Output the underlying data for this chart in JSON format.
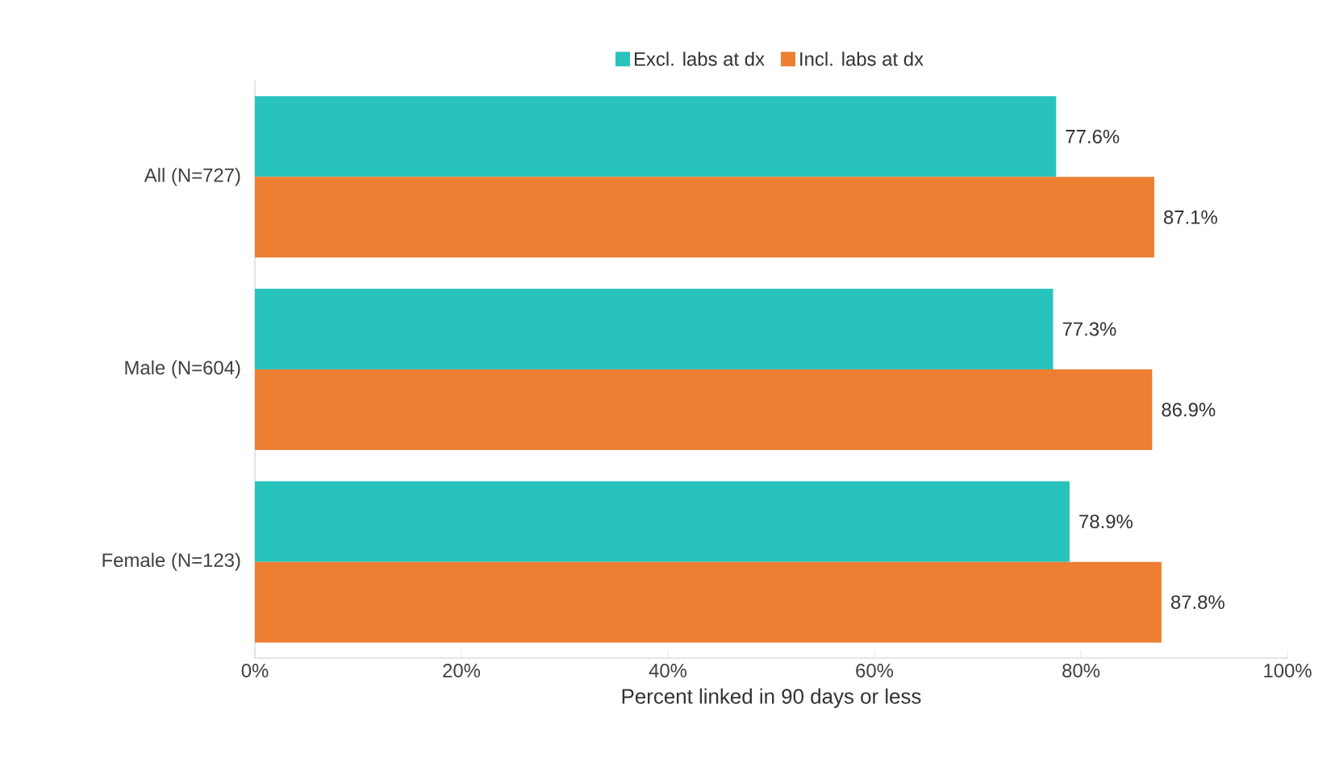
{
  "chart_data": {
    "type": "bar",
    "orientation": "horizontal",
    "categories": [
      "All (N=727)",
      "Male (N=604)",
      "Female (N=123)"
    ],
    "series": [
      {
        "name": "Excl. labs at dx",
        "color": "#29c3bd",
        "values": [
          77.6,
          77.3,
          78.9
        ],
        "value_labels": [
          "77.6%",
          "77.3%",
          "78.9%"
        ]
      },
      {
        "name": "Incl. labs at dx",
        "color": "#ed7f33",
        "values": [
          87.1,
          86.9,
          87.8
        ],
        "value_labels": [
          "87.1%",
          "86.9%",
          "87.8%"
        ]
      }
    ],
    "xlabel": "Percent linked in 90 days or less",
    "xlim": [
      0,
      100
    ],
    "xticks": [
      {
        "value": 0,
        "label": "0%"
      },
      {
        "value": 20,
        "label": "20%"
      },
      {
        "value": 40,
        "label": "40%"
      },
      {
        "value": 60,
        "label": "60%"
      },
      {
        "value": 80,
        "label": "80%"
      },
      {
        "value": 100,
        "label": "100%"
      }
    ],
    "legend": "top",
    "grid": false
  }
}
